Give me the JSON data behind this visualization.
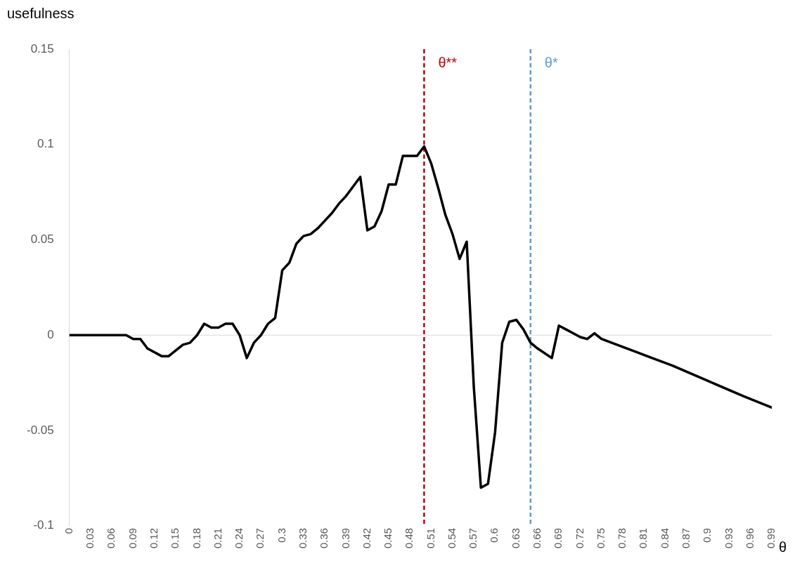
{
  "chart_data": {
    "type": "line",
    "xlabel": "θ",
    "ylabel": "usefulness",
    "series": [
      {
        "color": "#000000",
        "x": [
          0,
          0.08,
          0.09,
          0.1,
          0.11,
          0.13,
          0.14,
          0.16,
          0.17,
          0.18,
          0.19,
          0.2,
          0.21,
          0.22,
          0.23,
          0.24,
          0.25,
          0.26,
          0.27,
          0.28,
          0.29,
          0.3,
          0.31,
          0.32,
          0.33,
          0.34,
          0.35,
          0.36,
          0.37,
          0.38,
          0.39,
          0.4,
          0.41,
          0.42,
          0.43,
          0.44,
          0.45,
          0.46,
          0.47,
          0.48,
          0.49,
          0.5,
          0.51,
          0.52,
          0.53,
          0.54,
          0.55,
          0.56,
          0.57,
          0.58,
          0.59,
          0.6,
          0.61,
          0.62,
          0.63,
          0.64,
          0.65,
          0.66,
          0.68,
          0.69,
          0.7,
          0.71,
          0.72,
          0.73,
          0.74,
          0.75,
          0.8,
          0.85,
          0.9,
          0.95,
          0.99
        ],
        "values": [
          0,
          0,
          -0.002,
          -0.002,
          -0.007,
          -0.011,
          -0.011,
          -0.005,
          -0.004,
          0,
          0.006,
          0.004,
          0.004,
          0.006,
          0.006,
          0,
          -0.012,
          -0.004,
          0,
          0.006,
          0.009,
          0.034,
          0.038,
          0.048,
          0.052,
          0.053,
          0.056,
          0.06,
          0.064,
          0.069,
          0.073,
          0.078,
          0.083,
          0.055,
          0.057,
          0.065,
          0.079,
          0.079,
          0.094,
          0.094,
          0.094,
          0.099,
          0.09,
          0.077,
          0.063,
          0.053,
          0.04,
          0.049,
          -0.027,
          -0.08,
          -0.078,
          -0.051,
          -0.004,
          0.007,
          0.008,
          0.003,
          -0.004,
          -0.007,
          -0.012,
          0.005,
          0.003,
          0.001,
          -0.001,
          -0.002,
          0.001,
          -0.002,
          -0.009,
          -0.016,
          -0.024,
          -0.032,
          -0.038
        ]
      }
    ],
    "xlim": [
      0,
      0.99
    ],
    "xticks": [
      0,
      0.03,
      0.06,
      0.09,
      0.12,
      0.15,
      0.18,
      0.21,
      0.24,
      0.27,
      0.3,
      0.33,
      0.36,
      0.39,
      0.42,
      0.45,
      0.48,
      0.51,
      0.54,
      0.57,
      0.6,
      0.63,
      0.66,
      0.69,
      0.72,
      0.75,
      0.78,
      0.81,
      0.84,
      0.87,
      0.9,
      0.93,
      0.96,
      0.99
    ],
    "ylim": [
      -0.1,
      0.15
    ],
    "yticks": [
      -0.1,
      -0.05,
      0,
      0.05,
      0.1,
      0.15
    ],
    "grid": false,
    "legend": false,
    "marker": "none",
    "line_style": "solid",
    "ref_lines": [
      {
        "axis": "y",
        "value": 0,
        "color": "#d9d9d9",
        "line_style": "solid"
      },
      {
        "axis": "x",
        "value": 0.5,
        "label": "θ**",
        "color": "#c00000",
        "line_style": "dashed"
      },
      {
        "axis": "x",
        "value": 0.65,
        "label": "θ*",
        "color": "#5b9bd5",
        "line_style": "dashed"
      }
    ]
  }
}
